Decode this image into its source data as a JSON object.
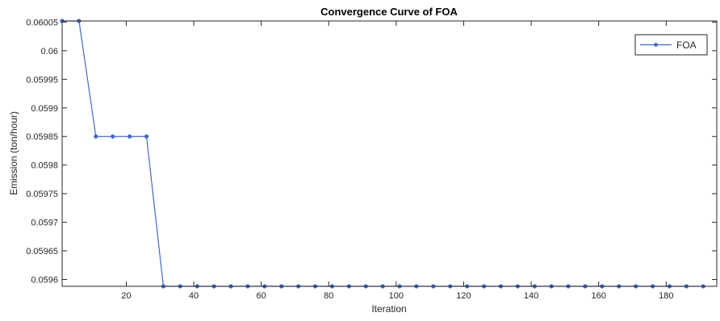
{
  "chart_data": {
    "type": "line",
    "title": "Convergence Curve of FOA",
    "xlabel": "Iteration",
    "ylabel": "Emission (ton/hour)",
    "xlim": [
      1,
      195
    ],
    "ylim": [
      0.059588,
      0.060052
    ],
    "xticks": [
      20,
      40,
      60,
      80,
      100,
      120,
      140,
      160,
      180
    ],
    "yticks": [
      0.0596,
      0.05965,
      0.0597,
      0.05975,
      0.0598,
      0.05985,
      0.0599,
      0.05995,
      0.06,
      0.06005
    ],
    "ytick_labels": [
      "0.0596",
      "0.05965",
      "0.0597",
      "0.05975",
      "0.0598",
      "0.05985",
      "0.0599",
      "0.05995",
      "0.06",
      "0.06005"
    ],
    "xtick_labels": [
      "20",
      "40",
      "60",
      "80",
      "100",
      "120",
      "140",
      "160",
      "180"
    ],
    "grid": false,
    "legend": "top-right",
    "series": [
      {
        "name": "FOA",
        "color": "#4169c4",
        "marker": "circle",
        "x": [
          1,
          6,
          11,
          16,
          21,
          26,
          31,
          36,
          41,
          46,
          51,
          56,
          61,
          66,
          71,
          76,
          81,
          86,
          91,
          96,
          101,
          106,
          111,
          116,
          121,
          126,
          131,
          136,
          141,
          146,
          151,
          156,
          161,
          166,
          171,
          176,
          181,
          186,
          191
        ],
        "y": [
          0.060052,
          0.060052,
          0.05985,
          0.05985,
          0.05985,
          0.05985,
          0.059588,
          0.059588,
          0.059588,
          0.059588,
          0.059588,
          0.059588,
          0.059588,
          0.059588,
          0.059588,
          0.059588,
          0.059588,
          0.059588,
          0.059588,
          0.059588,
          0.059588,
          0.059588,
          0.059588,
          0.059588,
          0.059588,
          0.059588,
          0.059588,
          0.059588,
          0.059588,
          0.059588,
          0.059588,
          0.059588,
          0.059588,
          0.059588,
          0.059588,
          0.059588,
          0.059588,
          0.059588,
          0.059588
        ]
      }
    ]
  }
}
